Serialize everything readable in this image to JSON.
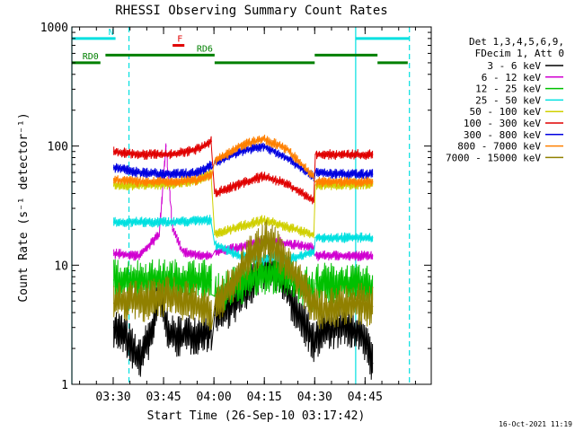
{
  "chart_data": {
    "type": "line",
    "title": "RHESSI Observing Summary Count Rates",
    "xlabel": "Start Time (26-Sep-10 03:17:42)",
    "ylabel": "Count Rate (s⁻¹ detector⁻¹)",
    "yscale": "log",
    "ylim": [
      1,
      1000
    ],
    "xlim_minutes_after_start": [
      0,
      107
    ],
    "y_tick_labels": [
      "1",
      "10",
      "100",
      "1000"
    ],
    "y_tick_values": [
      1,
      10,
      100,
      1000
    ],
    "x_tick_labels": [
      "03:30",
      "03:45",
      "04:00",
      "04:15",
      "04:30",
      "04:45"
    ],
    "x_tick_values_minutes_after_start": [
      12.3,
      27.3,
      42.3,
      57.3,
      72.3,
      87.3
    ],
    "grid": false,
    "legend_header": [
      "Det 1,3,4,5,6,9,",
      "FDecim 1, Att 0"
    ],
    "legend_position": "right",
    "series": [
      {
        "name": "3 - 6 keV",
        "color": "#000000",
        "x": [
          12.5,
          16,
          20,
          24,
          26,
          28,
          30,
          35,
          41.5,
          42.5,
          47,
          52,
          55,
          58,
          61,
          64,
          67,
          70,
          72,
          75,
          80,
          85,
          88,
          89.5
        ],
        "values": [
          3,
          2.5,
          1.6,
          2.8,
          6,
          3.2,
          2.5,
          2.6,
          2.8,
          3.8,
          4.5,
          6,
          8,
          10,
          9,
          6,
          4,
          3,
          2.2,
          2.8,
          3,
          2.8,
          2,
          1.5
        ]
      },
      {
        "name": "6 - 12 keV",
        "color": "#d000d0",
        "x": [
          12.5,
          20,
          26,
          28,
          30,
          33,
          38,
          41.5,
          42.5,
          50,
          55,
          60,
          65,
          72,
          72.5,
          80,
          89.5
        ],
        "values": [
          12.5,
          12,
          18,
          100,
          20,
          13,
          12,
          12,
          13,
          14,
          15.5,
          16,
          15,
          14,
          12,
          12,
          12
        ]
      },
      {
        "name": "12 - 25 keV",
        "color": "#00c000",
        "x": [
          12.5,
          20,
          30,
          41.5,
          42.5,
          48,
          55,
          60,
          65,
          72,
          72.5,
          80,
          89.5
        ],
        "values": [
          7.5,
          7.5,
          7.5,
          7.5,
          5.5,
          6.5,
          8,
          8.5,
          8,
          6,
          7,
          7,
          6.5
        ]
      },
      {
        "name": "25 - 50 keV",
        "color": "#00e0e0",
        "x": [
          12.5,
          20,
          30,
          41.5,
          42.5,
          50,
          57,
          60,
          64,
          72,
          72.5,
          80,
          89.5
        ],
        "values": [
          23,
          23,
          23,
          24,
          15,
          12,
          11,
          12,
          11,
          13,
          17,
          17,
          17
        ]
      },
      {
        "name": "50 - 100 keV",
        "color": "#d0d000",
        "x": [
          12.5,
          20,
          30,
          38,
          41.5,
          42.5,
          50,
          57,
          64,
          72,
          72.5,
          80,
          89.5
        ],
        "values": [
          47,
          47,
          48,
          52,
          60,
          18,
          21,
          24,
          21,
          18,
          47,
          47,
          48
        ]
      },
      {
        "name": "100 - 300 keV",
        "color": "#e00000",
        "x": [
          12.5,
          20,
          30,
          38,
          41.5,
          42.5,
          50,
          57,
          64,
          72,
          72.5,
          80,
          89.5
        ],
        "values": [
          90,
          85,
          85,
          95,
          110,
          40,
          48,
          56,
          48,
          35,
          85,
          85,
          85
        ]
      },
      {
        "name": "300 - 800 keV",
        "color": "#0000e0",
        "x": [
          12.5,
          20,
          30,
          38,
          41.5,
          42.5,
          50,
          57,
          64,
          72,
          72.5,
          80,
          89.5
        ],
        "values": [
          66,
          60,
          58,
          60,
          70,
          72,
          90,
          100,
          80,
          55,
          60,
          58,
          58
        ]
      },
      {
        "name": "800 - 7000 keV",
        "color": "#ff8000",
        "x": [
          12.5,
          20,
          30,
          38,
          41.5,
          42.5,
          50,
          57,
          64,
          72,
          72.5,
          80,
          89.5
        ],
        "values": [
          52,
          50,
          50,
          52,
          58,
          75,
          100,
          115,
          95,
          55,
          50,
          50,
          50
        ]
      },
      {
        "name": "7000 - 15000 keV",
        "color": "#908000",
        "x": [
          12.5,
          16,
          22,
          28,
          35,
          41.5,
          42.5,
          48,
          53,
          58,
          63,
          68,
          72,
          75,
          80,
          85,
          89.5
        ],
        "values": [
          4.8,
          5,
          5,
          5.5,
          5,
          4.2,
          4.5,
          7,
          12,
          16,
          12,
          7,
          4.5,
          4.2,
          4.5,
          4.8,
          4.5
        ]
      }
    ],
    "annotations": [
      {
        "label": "N",
        "color": "#00e0e0",
        "x_start": 0,
        "x_end": 13,
        "level": 800
      },
      {
        "label": "",
        "color": "#00e0e0",
        "x_start": 84.5,
        "x_end": 100.5,
        "level": 800
      },
      {
        "label": "F",
        "color": "#e00000",
        "x_start": 30,
        "x_end": 33.5,
        "level": 700
      },
      {
        "label": "RD0",
        "color": "#008000",
        "x_start": 0,
        "x_end": 8.5,
        "level": 500
      },
      {
        "label": "RD6",
        "color": "#008000",
        "x_start": 10,
        "x_end": 42.5,
        "level": 580
      },
      {
        "label": "",
        "color": "#008000",
        "x_start": 42.5,
        "x_end": 72.3,
        "level": 500
      },
      {
        "label": "",
        "color": "#008000",
        "x_start": 72.3,
        "x_end": 91,
        "level": 580
      },
      {
        "label": "",
        "color": "#008000",
        "x_start": 91,
        "x_end": 100,
        "level": 500
      }
    ],
    "vertical_markers": [
      {
        "x": 0,
        "style": "solid",
        "color": "#00e0e0"
      },
      {
        "x": 17,
        "style": "dashed",
        "color": "#00e0e0"
      },
      {
        "x": 84.5,
        "style": "solid",
        "color": "#00e0e0"
      },
      {
        "x": 100.5,
        "style": "dashed",
        "color": "#00e0e0"
      }
    ],
    "timestamp": "16-Oct-2021 11:19"
  }
}
